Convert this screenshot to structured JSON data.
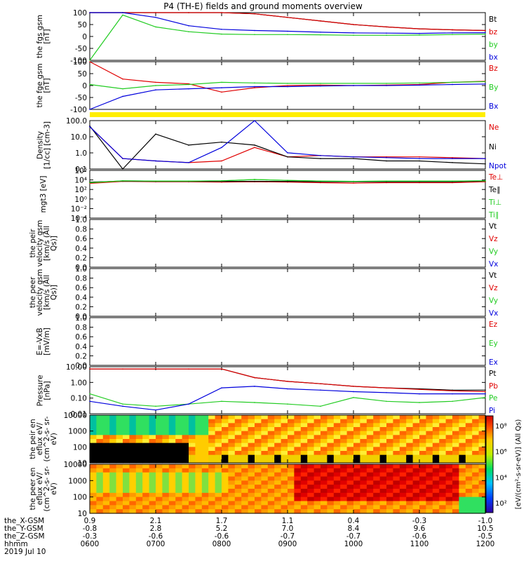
{
  "title": "P4 (TH-E) fields and ground moments overview",
  "colors": {
    "black": "#000000",
    "red": "#e00000",
    "green": "#22cc22",
    "blue": "#0000dd",
    "yellow": "#ffee00"
  },
  "panels": [
    {
      "id": "fgs",
      "ylabel": [
        "the",
        "fgs",
        "gsm",
        "[nT]"
      ],
      "ticks": [
        "100",
        "50",
        "0",
        "-50",
        "-100"
      ],
      "legend": [
        {
          "text": "Bt",
          "color": "black"
        },
        {
          "text": "bz",
          "color": "red"
        },
        {
          "text": "by",
          "color": "green"
        },
        {
          "text": "bx",
          "color": "blue"
        }
      ]
    },
    {
      "id": "fge",
      "ylabel": [
        "the",
        "fge",
        "gsm",
        "[nT]"
      ],
      "ticks": [
        "100",
        "50",
        "0",
        "-50",
        "-100"
      ],
      "legend": [
        {
          "text": "Bz",
          "color": "red"
        },
        {
          "text": "By",
          "color": "green"
        },
        {
          "text": "Bx",
          "color": "blue"
        }
      ]
    },
    {
      "id": "density",
      "ylabel": [
        "Density",
        "[1/cc]",
        "[cm-3]"
      ],
      "ticks": [
        "100.0",
        "10.0",
        "1.0",
        "0.1"
      ],
      "legend": [
        {
          "text": "Ne",
          "color": "red"
        },
        {
          "text": "Ni",
          "color": "black"
        },
        {
          "text": "Npot",
          "color": "blue"
        }
      ]
    },
    {
      "id": "temp",
      "ylabel": [
        "mgt3",
        "[eV]"
      ],
      "ticks": [
        "10⁶",
        "10⁴",
        "10²",
        "10⁰",
        "10⁻²",
        "10⁻⁴"
      ],
      "legend": [
        {
          "text": "Te⊥",
          "color": "red"
        },
        {
          "text": "Te∥",
          "color": "black"
        },
        {
          "text": "Ti⊥",
          "color": "green"
        },
        {
          "text": "Ti∥",
          "color": "green"
        }
      ]
    },
    {
      "id": "peir_vel",
      "ylabel": [
        "the",
        "peir",
        "velocity",
        "gsm",
        "[km/s (All Qs)]"
      ],
      "ticks": [
        "1.0",
        "0.8",
        "0.6",
        "0.4",
        "0.2",
        "0.0"
      ],
      "legend": [
        {
          "text": "Vt",
          "color": "black"
        },
        {
          "text": "Vz",
          "color": "red"
        },
        {
          "text": "Vy",
          "color": "green"
        },
        {
          "text": "Vx",
          "color": "blue"
        }
      ]
    },
    {
      "id": "peer_vel",
      "ylabel": [
        "the",
        "peer",
        "velocity",
        "gsm",
        "[km/s (All Qs)]"
      ],
      "ticks": [
        "1.0",
        "0.8",
        "0.6",
        "0.4",
        "0.2",
        "0.0"
      ],
      "legend": [
        {
          "text": "Vt",
          "color": "black"
        },
        {
          "text": "Vz",
          "color": "red"
        },
        {
          "text": "Vy",
          "color": "green"
        },
        {
          "text": "Vx",
          "color": "blue"
        }
      ]
    },
    {
      "id": "efield",
      "ylabel": [
        "E=-VxB",
        "[mV/m]"
      ],
      "ticks": [
        "1.0",
        "0.8",
        "0.6",
        "0.4",
        "0.2",
        "0.0"
      ],
      "legend": [
        {
          "text": "Ez",
          "color": "red"
        },
        {
          "text": "Ey",
          "color": "green"
        },
        {
          "text": "Ex",
          "color": "blue"
        }
      ]
    },
    {
      "id": "pressure",
      "ylabel": [
        "Pressure",
        "[nPa]"
      ],
      "ticks": [
        "10.00",
        "1.00",
        "0.10",
        "0.01"
      ],
      "legend": [
        {
          "text": "Pt",
          "color": "black"
        },
        {
          "text": "Pb",
          "color": "red"
        },
        {
          "text": "Pe",
          "color": "green"
        },
        {
          "text": "Pi",
          "color": "blue"
        }
      ]
    },
    {
      "id": "peir_en",
      "ylabel": [
        "the",
        "peir",
        "en",
        "eflux",
        "eV/",
        "(cm^2-s-",
        "sr-eV)"
      ],
      "ticks": [
        "10000",
        "1000",
        "100",
        "10"
      ],
      "legend": []
    },
    {
      "id": "peer_en",
      "ylabel": [
        "the",
        "peer",
        "en",
        "eflux",
        "eV/",
        "(cm^2-s-",
        "sr-eV)"
      ],
      "ticks": [
        "10000",
        "1000",
        "100",
        "10"
      ],
      "legend": []
    }
  ],
  "colorbar": {
    "label": "[eV/(cm²-s-sr-eV)] (All Qs)",
    "ticks": [
      "10⁸",
      "10⁶",
      "10⁴",
      "10²"
    ]
  },
  "x_axis": {
    "rows": [
      {
        "label": "the_X-GSM",
        "values": [
          "0.9",
          "2.1",
          "1.7",
          "1.1",
          "0.4",
          "-0.3",
          "-1.0"
        ]
      },
      {
        "label": "the_Y-GSM",
        "values": [
          "-0.8",
          "2.8",
          "5.2",
          "7.0",
          "8.4",
          "9.6",
          "10.5"
        ]
      },
      {
        "label": "the_Z-GSM",
        "values": [
          "-0.3",
          "-0.6",
          "-0.6",
          "-0.7",
          "-0.7",
          "-0.6",
          "-0.5"
        ]
      },
      {
        "label": "hhmm",
        "values": [
          "0600",
          "0700",
          "0800",
          "0900",
          "1000",
          "1100",
          "1200"
        ]
      }
    ],
    "date": "2019 Jul 10"
  },
  "chart_data": {
    "type": "line",
    "title": "P4 (TH-E) fields and ground moments overview",
    "x": [
      "0600",
      "0630",
      "0700",
      "0730",
      "0800",
      "0830",
      "0900",
      "0930",
      "1000",
      "1030",
      "1100",
      "1130",
      "1200"
    ],
    "xlabel": "hhmm",
    "panels": [
      {
        "name": "fgs gsm [nT]",
        "ylim": [
          -100,
          100
        ],
        "series": [
          {
            "name": "Bt",
            "values": [
              100,
              100,
              100,
              100,
              100,
              95,
              80,
              65,
              50,
              40,
              32,
              28,
              25
            ]
          },
          {
            "name": "bz",
            "values": [
              100,
              100,
              100,
              100,
              100,
              95,
              80,
              65,
              50,
              40,
              32,
              28,
              25
            ]
          },
          {
            "name": "by",
            "values": [
              -100,
              90,
              40,
              20,
              10,
              8,
              8,
              7,
              5,
              5,
              6,
              8,
              10
            ]
          },
          {
            "name": "bx",
            "values": [
              100,
              100,
              80,
              45,
              30,
              25,
              22,
              18,
              15,
              14,
              13,
              15,
              16
            ]
          }
        ]
      },
      {
        "name": "fge gsm [nT]",
        "ylim": [
          -120,
          100
        ],
        "series": [
          {
            "name": "Bz",
            "values": [
              100,
              20,
              5,
              -2,
              -40,
              -20,
              -10,
              -8,
              -10,
              -8,
              -5,
              5,
              10
            ]
          },
          {
            "name": "By",
            "values": [
              -5,
              -25,
              -10,
              -5,
              5,
              2,
              0,
              0,
              0,
              0,
              2,
              5,
              8
            ]
          },
          {
            "name": "Bx",
            "values": [
              -120,
              -60,
              -30,
              -25,
              -20,
              -15,
              -15,
              -12,
              -10,
              -10,
              -8,
              -5,
              -3
            ]
          }
        ]
      },
      {
        "name": "Density [cm-3]",
        "ylim": [
          0.05,
          200
        ],
        "scale": "log",
        "series": [
          {
            "name": "Ne",
            "values": [
              70,
              0.3,
              0.2,
              0.15,
              0.2,
              2,
              0.4,
              0.5,
              0.4,
              0.4,
              0.4,
              0.35,
              0.3
            ]
          },
          {
            "name": "Ni",
            "values": [
              80,
              0.05,
              20,
              3,
              5,
              3,
              0.4,
              0.3,
              0.3,
              0.2,
              0.2,
              0.15,
              0.12
            ]
          },
          {
            "name": "Npot",
            "values": [
              70,
              0.3,
              0.2,
              0.15,
              2,
              200,
              0.8,
              0.5,
              0.4,
              0.35,
              0.3,
              0.3,
              0.3
            ]
          }
        ]
      },
      {
        "name": "mgt3 [eV]",
        "ylim": [
          1e-05,
          1000000
        ],
        "scale": "log",
        "series": [
          {
            "name": "Te⊥",
            "values": [
              1000,
              3000,
              2500,
              2500,
              2000,
              2500,
              2000,
              1500,
              1200,
              1500,
              1500,
              1500,
              2500
            ]
          },
          {
            "name": "Te∥",
            "values": [
              2000,
              3500,
              3000,
              3000,
              3000,
              3000,
              3000,
              2500,
              2500,
              2500,
              2500,
              2500,
              3500
            ]
          },
          {
            "name": "Ti⊥",
            "values": [
              1500,
              4000,
              3500,
              3500,
              4000,
              8000,
              5000,
              3500,
              3000,
              3500,
              3500,
              3500,
              4000
            ]
          },
          {
            "name": "Ti∥",
            "values": [
              1500,
              4000,
              3500,
              3500,
              4000,
              8000,
              5000,
              3500,
              3000,
              3500,
              3500,
              3500,
              4000
            ]
          }
        ]
      },
      {
        "name": "Pressure [nPa]",
        "ylim": [
          0.005,
          30
        ],
        "scale": "log",
        "series": [
          {
            "name": "Pt",
            "values": [
              20,
              20,
              20,
              20,
              20,
              4,
              2,
              1.3,
              0.8,
              0.6,
              0.5,
              0.4,
              0.4
            ]
          },
          {
            "name": "Pb",
            "values": [
              20,
              20,
              20,
              20,
              20,
              4,
              2,
              1.3,
              0.8,
              0.6,
              0.45,
              0.35,
              0.3
            ]
          },
          {
            "name": "Pe",
            "values": [
              0.2,
              0.03,
              0.02,
              0.03,
              0.05,
              0.04,
              0.03,
              0.02,
              0.1,
              0.05,
              0.04,
              0.05,
              0.1
            ]
          },
          {
            "name": "Pi",
            "values": [
              0.05,
              0.02,
              0.01,
              0.03,
              0.6,
              0.8,
              0.5,
              0.4,
              0.3,
              0.25,
              0.2,
              0.2,
              0.2
            ]
          }
        ]
      }
    ]
  }
}
